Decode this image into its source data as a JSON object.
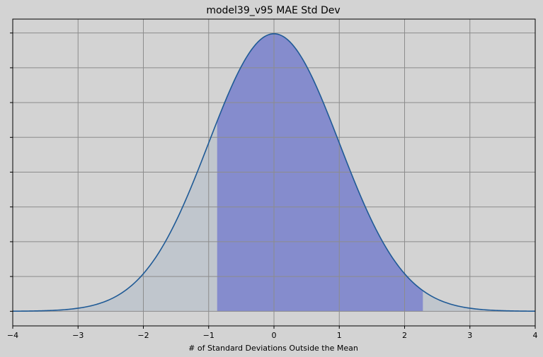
{
  "chart_data": {
    "type": "area",
    "title": "model39_v95 MAE Std Dev",
    "xlabel": "# of Standard Deviations Outside the Mean",
    "ylabel": "",
    "xlim": [
      -4,
      4
    ],
    "ylim": [
      -0.021,
      0.42
    ],
    "x_ticks": [
      -4,
      -3,
      -2,
      -1,
      0,
      1,
      2,
      3,
      4
    ],
    "x_tick_labels": [
      "−4",
      "−3",
      "−2",
      "−1",
      "0",
      "1",
      "2",
      "3",
      "4"
    ],
    "y_ticks": [
      0,
      0.05,
      0.1,
      0.15,
      0.2,
      0.25,
      0.3,
      0.35,
      0.4
    ],
    "y_tick_labels_shown": false,
    "curve": "standard normal pdf",
    "highlight_range": [
      -0.87,
      2.28
    ],
    "grid": true,
    "legend": "none",
    "colors": {
      "background": "#d3d3d3",
      "curve": "#1f5a96",
      "tail_fill": "#c0c6cd",
      "highlight_fill": "#858ccd",
      "grid": "#8c8c8c"
    }
  }
}
